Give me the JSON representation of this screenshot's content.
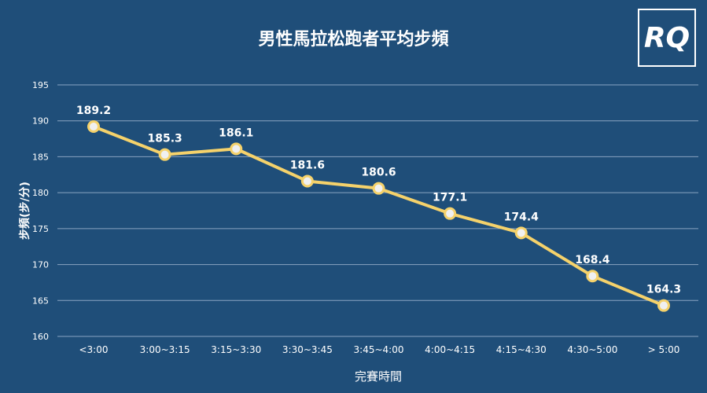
{
  "logo": {
    "text": "RQ"
  },
  "colors": {
    "background": "#1f4e79",
    "line": "#f5d26b",
    "marker_fill": "#f0f0f0",
    "grid": "#8aa4c2",
    "text": "#ffffff"
  },
  "chart_data": {
    "type": "line",
    "title": "男性馬拉松跑者平均步頻",
    "xlabel": "完賽時間",
    "ylabel": "步頻(步/分)",
    "categories": [
      "<3:00",
      "3:00~3:15",
      "3:15~3:30",
      "3:30~3:45",
      "3:45~4:00",
      "4:00~4:15",
      "4:15~4:30",
      "4:30~5:00",
      "> 5:00"
    ],
    "series": [
      {
        "values": [
          189.2,
          185.3,
          186.1,
          181.6,
          180.6,
          177.1,
          174.4,
          168.4,
          164.3
        ]
      }
    ],
    "ylim": [
      160,
      195
    ],
    "yticks": [
      160,
      165,
      170,
      175,
      180,
      185,
      190,
      195
    ],
    "grid": true,
    "legend": "none",
    "data_labels": [
      "189.2",
      "185.3",
      "186.1",
      "181.6",
      "180.6",
      "177.1",
      "174.4",
      "168.4",
      "164.3"
    ]
  }
}
